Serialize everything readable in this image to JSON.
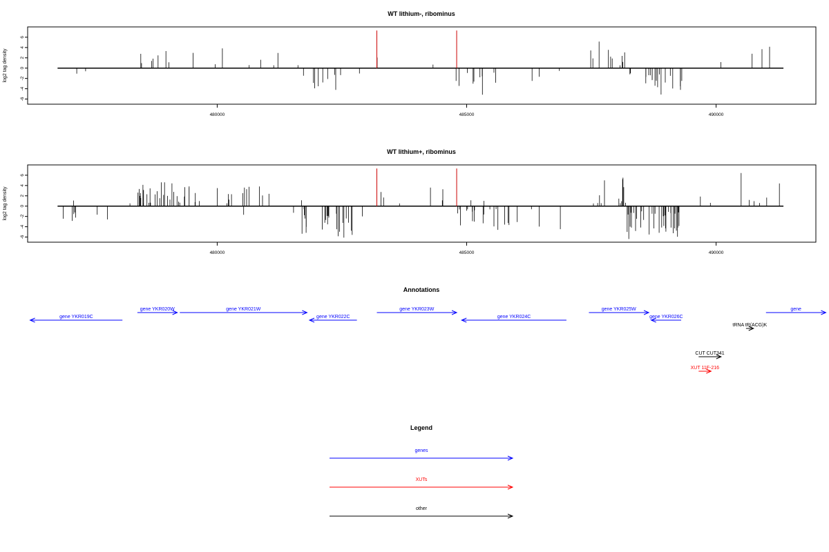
{
  "colors": {
    "gene": "#0000ff",
    "xut": "#ff0000",
    "other": "#000000",
    "marker": "#cc0000",
    "axis": "#000000"
  },
  "chart_data": [
    {
      "type": "bar",
      "title": "WT lithium-, ribominus",
      "ylabel": "log2 tag density",
      "xlabel": "",
      "xlim": [
        476200,
        492000
      ],
      "ylim": [
        -7,
        8
      ],
      "xticks": [
        480000,
        485000,
        490000
      ],
      "yticks": [
        -6,
        -4,
        -2,
        0,
        2,
        4,
        6
      ],
      "track_start": 476800,
      "track_end": 491350,
      "marker_positions": [
        483200,
        484800
      ],
      "marker_height": 7.3,
      "seed": 11,
      "regions": [
        {
          "start": 476800,
          "end": 478400,
          "strand": "-",
          "density": 0.012,
          "min": 0.5,
          "max": 3.5
        },
        {
          "start": 478400,
          "end": 479200,
          "strand": "+",
          "density": 0.09,
          "min": 0.5,
          "max": 4.0
        },
        {
          "start": 479200,
          "end": 481700,
          "strand": "+",
          "density": 0.03,
          "min": 0.5,
          "max": 4.2
        },
        {
          "start": 481700,
          "end": 482600,
          "strand": "-",
          "density": 0.1,
          "min": 1.0,
          "max": 4.5
        },
        {
          "start": 482600,
          "end": 483150,
          "strand": "-",
          "density": 0.01,
          "min": 1.0,
          "max": 3.0
        },
        {
          "start": 483150,
          "end": 484700,
          "strand": "+",
          "density": 0.012,
          "min": 0.5,
          "max": 3.0
        },
        {
          "start": 484700,
          "end": 486900,
          "strand": "-",
          "density": 0.06,
          "min": 0.5,
          "max": 5.2
        },
        {
          "start": 487400,
          "end": 488200,
          "strand": "+",
          "density": 0.13,
          "min": 0.5,
          "max": 5.3
        },
        {
          "start": 488200,
          "end": 489400,
          "strand": "-",
          "density": 0.16,
          "min": 1.0,
          "max": 5.6
        },
        {
          "start": 489400,
          "end": 490500,
          "strand": "+",
          "density": 0.008,
          "min": 0.5,
          "max": 1.8
        },
        {
          "start": 490500,
          "end": 491350,
          "strand": "+",
          "density": 0.03,
          "min": 0.5,
          "max": 6.2
        }
      ]
    },
    {
      "type": "bar",
      "title": "WT lithium+, ribominus",
      "ylabel": "log2 tag density",
      "xlabel": "",
      "xlim": [
        476200,
        492000
      ],
      "ylim": [
        -7,
        8
      ],
      "xticks": [
        480000,
        485000,
        490000
      ],
      "yticks": [
        -6,
        -4,
        -2,
        0,
        2,
        4,
        6
      ],
      "track_start": 476800,
      "track_end": 491350,
      "marker_positions": [
        483200,
        484800
      ],
      "marker_height": 7.3,
      "seed": 23,
      "regions": [
        {
          "start": 476800,
          "end": 478200,
          "strand": "-",
          "density": 0.06,
          "min": 0.5,
          "max": 3.2
        },
        {
          "start": 476800,
          "end": 478200,
          "strand": "+",
          "density": 0.01,
          "min": 0.5,
          "max": 1.5
        },
        {
          "start": 478200,
          "end": 478400,
          "strand": "+",
          "density": 0.03,
          "min": 0.5,
          "max": 2.0
        },
        {
          "start": 478400,
          "end": 479250,
          "strand": "+",
          "density": 0.3,
          "min": 0.5,
          "max": 5.0
        },
        {
          "start": 479250,
          "end": 481700,
          "strand": "+",
          "density": 0.08,
          "min": 0.5,
          "max": 4.0
        },
        {
          "start": 479250,
          "end": 481700,
          "strand": "-",
          "density": 0.01,
          "min": 0.5,
          "max": 2.0
        },
        {
          "start": 481700,
          "end": 482800,
          "strand": "-",
          "density": 0.22,
          "min": 0.5,
          "max": 6.5
        },
        {
          "start": 482800,
          "end": 483150,
          "strand": "-",
          "density": 0.01,
          "min": 0.5,
          "max": 2.0
        },
        {
          "start": 483150,
          "end": 484750,
          "strand": "+",
          "density": 0.04,
          "min": 0.5,
          "max": 4.8
        },
        {
          "start": 484700,
          "end": 486900,
          "strand": "-",
          "density": 0.1,
          "min": 0.5,
          "max": 4.8
        },
        {
          "start": 484700,
          "end": 486900,
          "strand": "+",
          "density": 0.01,
          "min": 0.5,
          "max": 1.5
        },
        {
          "start": 487400,
          "end": 488200,
          "strand": "+",
          "density": 0.15,
          "min": 0.5,
          "max": 5.6
        },
        {
          "start": 488200,
          "end": 489400,
          "strand": "-",
          "density": 0.28,
          "min": 1.0,
          "max": 6.4
        },
        {
          "start": 489400,
          "end": 490500,
          "strand": "+",
          "density": 0.02,
          "min": 0.5,
          "max": 2.0
        },
        {
          "start": 490500,
          "end": 491350,
          "strand": "+",
          "density": 0.07,
          "min": 0.5,
          "max": 7.2
        }
      ]
    }
  ],
  "annotations": {
    "title": "Annotations",
    "features": [
      {
        "label": "gene YKR019C",
        "kind": "gene",
        "start": 476250,
        "end": 478100,
        "strand": "-",
        "row": 2
      },
      {
        "label": "gene YKR020W",
        "kind": "gene",
        "start": 478400,
        "end": 479200,
        "strand": "+",
        "row": 1
      },
      {
        "label": "gene YKR021W",
        "kind": "gene",
        "start": 479250,
        "end": 481800,
        "strand": "+",
        "row": 1
      },
      {
        "label": "gene YKR022C",
        "kind": "gene",
        "start": 481850,
        "end": 482800,
        "strand": "-",
        "row": 2
      },
      {
        "label": "gene YKR023W",
        "kind": "gene",
        "start": 483200,
        "end": 484800,
        "strand": "+",
        "row": 1
      },
      {
        "label": "gene YKR024C",
        "kind": "gene",
        "start": 484900,
        "end": 487000,
        "strand": "-",
        "row": 2
      },
      {
        "label": "gene YKR025W",
        "kind": "gene",
        "start": 487450,
        "end": 488650,
        "strand": "+",
        "row": 1
      },
      {
        "label": "gene YKR026C",
        "kind": "gene",
        "start": 488700,
        "end": 489300,
        "strand": "-",
        "row": 2
      },
      {
        "label": "tRNA tR(ACG)K",
        "kind": "other",
        "start": 490600,
        "end": 490750,
        "strand": "+",
        "row": 3
      },
      {
        "label": "gene",
        "kind": "gene",
        "start": 491000,
        "end": 492200,
        "strand": "+",
        "row": 1
      },
      {
        "label": "CUT CUT341",
        "kind": "other",
        "start": 489650,
        "end": 490100,
        "strand": "+",
        "row": 4
      },
      {
        "label": "XUT 11F-216",
        "kind": "xut",
        "start": 489650,
        "end": 489900,
        "strand": "+",
        "row": 5
      }
    ]
  },
  "legend": {
    "title": "Legend",
    "items": [
      {
        "label": "genes",
        "kind": "gene"
      },
      {
        "label": "XUTs",
        "kind": "xut"
      },
      {
        "label": "other",
        "kind": "other"
      }
    ]
  }
}
